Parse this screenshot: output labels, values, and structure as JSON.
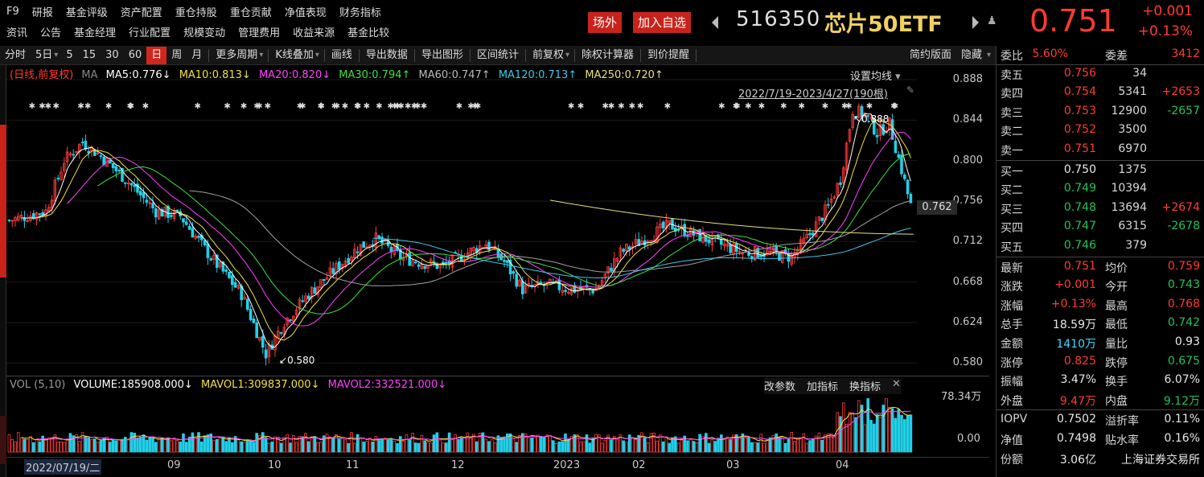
{
  "nav": {
    "row1": [
      "F9",
      "研报",
      "基金评级",
      "资产配置",
      "重仓持股",
      "重仓贡献",
      "净值表现",
      "财务指标"
    ],
    "row2": [
      "资讯",
      "公告",
      "基金经理",
      "行业配置",
      "规模变动",
      "管理费用",
      "收益来源",
      "基金比较"
    ]
  },
  "header": {
    "otc_button": "场外",
    "watchlist_button": "加入自选",
    "code": "516350",
    "name": "芯片50ETF",
    "price": "0.751",
    "change": "+0.001",
    "change_pct": "+0.13%"
  },
  "toolbar": {
    "periods": [
      "分时",
      "5日",
      "5",
      "15",
      "30",
      "60",
      "日",
      "周",
      "月"
    ],
    "active_period": "日",
    "items": [
      "更多周期",
      "K线叠加",
      "画线",
      "导出数据",
      "导出图形",
      "区间统计",
      "前复权",
      "除权计算器",
      "到价提醒"
    ],
    "right_items": [
      "简约版面",
      "隐藏"
    ]
  },
  "sidebar": {
    "colors": [
      "#c8231b"
    ]
  },
  "chart_legend": {
    "label": "(日线,前复权)",
    "ma_label": "MA",
    "ma5": "MA5:0.776↓",
    "ma10": "MA10:0.813↓",
    "ma20": "MA20:0.820↓",
    "ma30": "MA30:0.794↑",
    "ma60": "MA60:0.747↑",
    "ma120": "MA120:0.713↑",
    "ma250": "MA250:0.720↑",
    "settings": "设置均线",
    "range": "2022/7/19-2023/4/27(190根)",
    "high_marker": "0.888",
    "low_marker": "0.580",
    "current_price_tag": "0.762"
  },
  "chart_data": {
    "type": "candlestick",
    "y_ticks": [
      "0.888",
      "0.844",
      "0.800",
      "0.756",
      "0.712",
      "0.668",
      "0.624",
      "0.580"
    ],
    "ylim": [
      0.575,
      0.895
    ],
    "x_labels": [
      "2022/07/19/二",
      "09",
      "10",
      "11",
      "12",
      "2023",
      "02",
      "03",
      "04"
    ],
    "high": 0.888,
    "low": 0.58,
    "series_ma": [
      {
        "name": "MA5",
        "color": "#ffffff"
      },
      {
        "name": "MA10",
        "color": "#f0e040"
      },
      {
        "name": "MA20",
        "color": "#ff40ff"
      },
      {
        "name": "MA30",
        "color": "#40e040"
      },
      {
        "name": "MA60",
        "color": "#a0a0a0"
      },
      {
        "name": "MA120",
        "color": "#40c8e8"
      },
      {
        "name": "MA250",
        "color": "#e8e080"
      }
    ]
  },
  "volume": {
    "legend_label": "VOL (5,10)",
    "volume": "VOLUME:185908.000↓",
    "mavol1": "MAVOL1:309837.000↓",
    "mavol2": "MAVOL2:332521.000↓",
    "buttons": [
      "改参数",
      "加指标",
      "换指标"
    ],
    "y_max_label": "78.34万",
    "y_min_label": "0.00"
  },
  "panel": {
    "weibi_label": "委比",
    "weibi": "5.60%",
    "weicha_label": "委差",
    "weicha": "3412",
    "sells": [
      {
        "label": "卖五",
        "price": "0.756",
        "vol": "34",
        "chg": ""
      },
      {
        "label": "卖四",
        "price": "0.754",
        "vol": "5341",
        "chg": "+2653"
      },
      {
        "label": "卖三",
        "price": "0.753",
        "vol": "12900",
        "chg": "-2657"
      },
      {
        "label": "卖二",
        "price": "0.752",
        "vol": "3500",
        "chg": ""
      },
      {
        "label": "卖一",
        "price": "0.751",
        "vol": "6970",
        "chg": ""
      }
    ],
    "buys": [
      {
        "label": "买一",
        "price": "0.750",
        "vol": "1375",
        "chg": ""
      },
      {
        "label": "买二",
        "price": "0.749",
        "vol": "10394",
        "chg": ""
      },
      {
        "label": "买三",
        "price": "0.748",
        "vol": "13694",
        "chg": "+2674"
      },
      {
        "label": "买四",
        "price": "0.747",
        "vol": "6315",
        "chg": "-2678"
      },
      {
        "label": "买五",
        "price": "0.746",
        "vol": "379",
        "chg": ""
      }
    ],
    "stats": [
      {
        "l1": "最新",
        "v1": "0.751",
        "c1": "red",
        "l2": "均价",
        "v2": "0.759",
        "c2": "red"
      },
      {
        "l1": "涨跌",
        "v1": "+0.001",
        "c1": "red",
        "l2": "今开",
        "v2": "0.743",
        "c2": "green"
      },
      {
        "l1": "涨幅",
        "v1": "+0.13%",
        "c1": "red",
        "l2": "最高",
        "v2": "0.768",
        "c2": "red"
      },
      {
        "l1": "总手",
        "v1": "18.59万",
        "c1": "white",
        "l2": "最低",
        "v2": "0.742",
        "c2": "green"
      },
      {
        "l1": "金额",
        "v1": "1410万",
        "c1": "cyan",
        "l2": "量比",
        "v2": "0.93",
        "c2": "white"
      },
      {
        "l1": "涨停",
        "v1": "0.825",
        "c1": "red",
        "l2": "跌停",
        "v2": "0.675",
        "c2": "green"
      },
      {
        "l1": "振幅",
        "v1": "3.47%",
        "c1": "white",
        "l2": "换手",
        "v2": "6.07%",
        "c2": "white"
      },
      {
        "l1": "外盘",
        "v1": "9.47万",
        "c1": "red",
        "l2": "内盘",
        "v2": "9.12万",
        "c2": "green"
      }
    ],
    "extra": [
      {
        "l1": "IOPV",
        "v1": "0.7502",
        "l2": "溢折率",
        "v2": "0.11%"
      },
      {
        "l1": "净值",
        "v1": "0.7498",
        "l2": "贴水率",
        "v2": "0.16%"
      },
      {
        "l1": "份额",
        "v1": "3.06亿",
        "l2": "",
        "v2": "上海证券交易所"
      }
    ]
  }
}
